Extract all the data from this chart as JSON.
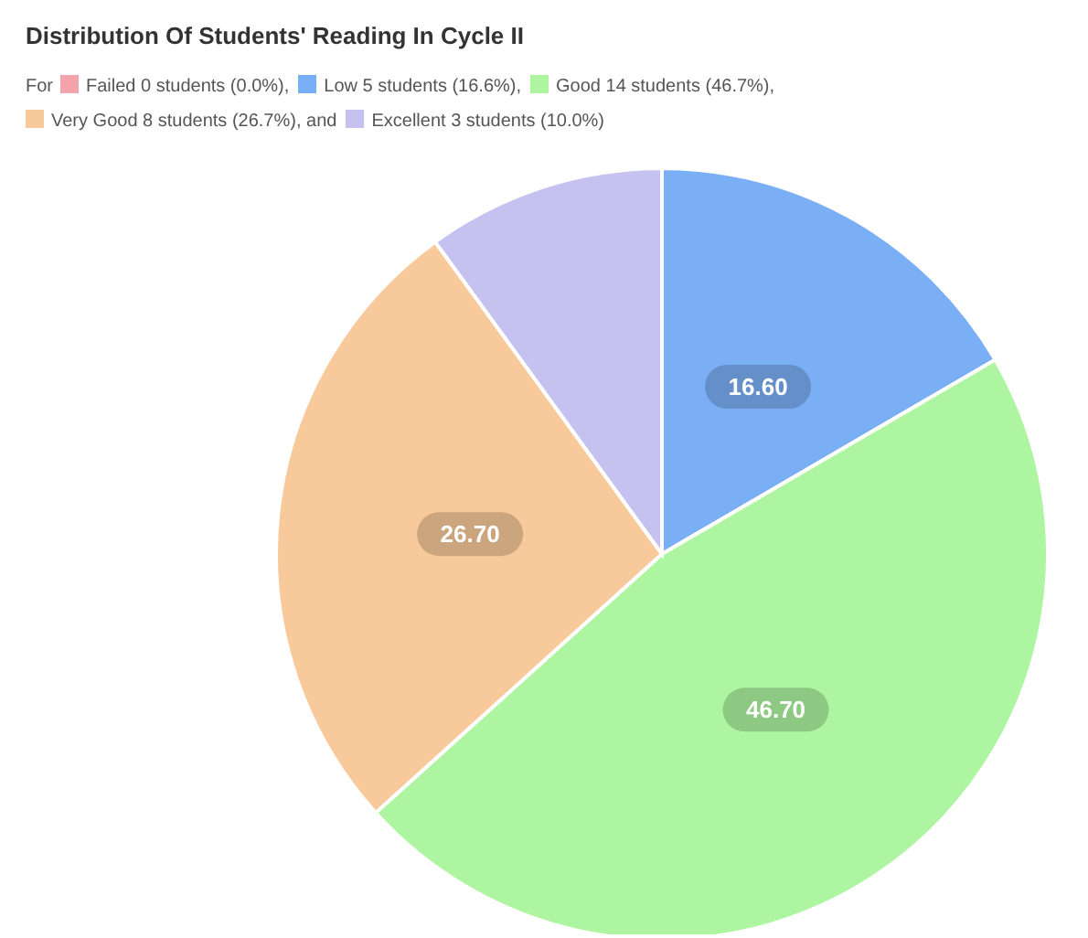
{
  "chart_data": {
    "type": "pie",
    "title": "Distribution Of Students' Reading In Cycle II",
    "legend_title": "For",
    "legend": "top left",
    "categories": [
      "Failed 0 students (0.0%)",
      "Low 5 students (16.6%)",
      "Good 14 students (46.7%)",
      "Very Good 8 students (26.7%), and",
      "Excellent 3 students (10.0%)"
    ],
    "values": [
      0,
      16.6,
      46.7,
      26.7,
      10.0
    ],
    "colors": [
      "#f2a3ab",
      "#7aaef5",
      "#adf5a0",
      "#f8c99a",
      "#c6c2ef"
    ],
    "value_labels": [
      null,
      "16.60",
      "46.70",
      "26.70",
      null
    ],
    "annotations": [
      ","
    ]
  }
}
